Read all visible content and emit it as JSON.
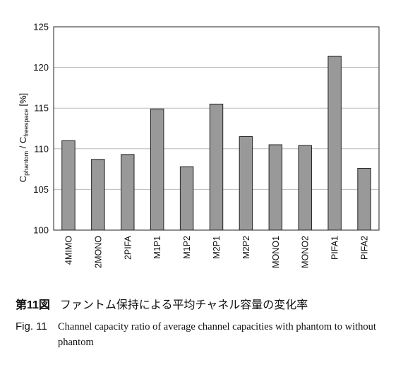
{
  "chart_data": {
    "type": "bar",
    "categories": [
      "4MIMO",
      "2MONO",
      "2PIFA",
      "M1P1",
      "M1P2",
      "M2P1",
      "M2P2",
      "MONO1",
      "MONO2",
      "PIFA1",
      "PIFA2"
    ],
    "values": [
      111.0,
      108.7,
      109.3,
      114.9,
      107.8,
      115.5,
      111.5,
      110.5,
      110.4,
      121.4,
      107.6
    ],
    "ylim": [
      100,
      125
    ],
    "yticks": [
      100,
      105,
      110,
      115,
      120,
      125
    ],
    "ylabel": {
      "main": "C",
      "sub1": "phantom",
      "mid": " / C",
      "sub2": "freespace",
      "unit": " [%]"
    },
    "grid": true,
    "bar_color": "#999999",
    "grid_color": "#bbbbbb"
  },
  "caption": {
    "jp_number": "第11図",
    "jp_text": "ファントム保持による平均チャネル容量の変化率",
    "en_number": "Fig. 11",
    "en_text": "Channel capacity ratio of average channel capacities with phantom to without phantom"
  }
}
